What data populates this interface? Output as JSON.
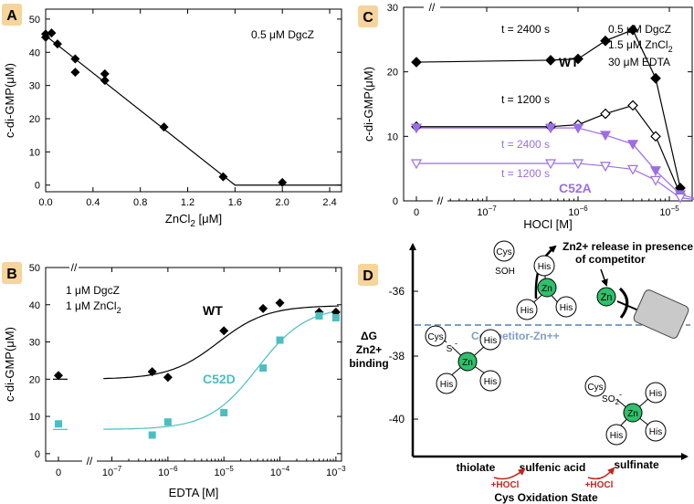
{
  "colors": {
    "wt": "#000000",
    "c52d": "#4bbfbf",
    "c52a": "#9b6ee6",
    "badge": "#f6d49a",
    "zn": "#2ec06a",
    "competitor": "#7f9fc8",
    "arrow_red": "#c0281e"
  },
  "chart_data": [
    {
      "panel": "A",
      "type": "scatter",
      "xlabel": "ZnCl2 [μM]",
      "ylabel": "c-di-GMP(μM)",
      "xlim": [
        0,
        2.5
      ],
      "ylim": [
        -2,
        53
      ],
      "xticks": [
        0.0,
        0.4,
        0.8,
        1.2,
        1.6,
        2.0,
        2.4
      ],
      "xtick_labels": [
        "0.0",
        "0.4",
        "0.8",
        "1.2",
        "1.6",
        "2.0",
        "2.4"
      ],
      "yticks": [
        0,
        10,
        20,
        30,
        40,
        50
      ],
      "ytick_labels": [
        "0",
        "10",
        "20",
        "30",
        "40",
        "50"
      ],
      "annotation": "0.5 μM DgcZ",
      "points": [
        {
          "x": 0.0,
          "y": 44.5
        },
        {
          "x": 0.0,
          "y": 45.5
        },
        {
          "x": 0.05,
          "y": 45.8
        },
        {
          "x": 0.1,
          "y": 42.5
        },
        {
          "x": 0.25,
          "y": 38
        },
        {
          "x": 0.25,
          "y": 34
        },
        {
          "x": 0.5,
          "y": 33.5
        },
        {
          "x": 0.5,
          "y": 31.5
        },
        {
          "x": 1.0,
          "y": 17.5
        },
        {
          "x": 1.5,
          "y": 2.5
        },
        {
          "x": 2.0,
          "y": 0.8
        }
      ],
      "fit_line": [
        {
          "x": 0.0,
          "y": 45
        },
        {
          "x": 1.6,
          "y": 0
        },
        {
          "x": 2.5,
          "y": 0
        }
      ]
    },
    {
      "panel": "B",
      "type": "scatter",
      "xlabel": "EDTA [M]",
      "ylabel": "c-di-GMP(μM)",
      "xlim": [
        -7.4,
        -2.9
      ],
      "ylim": [
        -2,
        50
      ],
      "xticks": [
        -7,
        -6,
        -5,
        -4,
        -3
      ],
      "xtick_labels": [
        "10−7",
        "10−6",
        "10−5",
        "10−4",
        "10−3"
      ],
      "zero_tick": "0",
      "yticks": [
        0,
        10,
        20,
        30,
        40,
        50
      ],
      "ytick_labels": [
        "0",
        "10",
        "20",
        "30",
        "40",
        "50"
      ],
      "annotation_lines": [
        "1 μM DgcZ",
        "1 μM ZnCl2"
      ],
      "series": [
        {
          "name": "WT",
          "marker": "diamond",
          "zero_value": 21,
          "points": [
            {
              "x": -6.28,
              "y": 22
            },
            {
              "x": -6.0,
              "y": 20.5
            },
            {
              "x": -5.0,
              "y": 33
            },
            {
              "x": -4.3,
              "y": 39
            },
            {
              "x": -4.0,
              "y": 40.5
            },
            {
              "x": -3.3,
              "y": 38
            },
            {
              "x": -3.0,
              "y": 38
            }
          ],
          "fit": {
            "low": 20,
            "high": 39.8,
            "log_ec50": -5.1,
            "hill": 1
          }
        },
        {
          "name": "C52D",
          "marker": "square",
          "zero_value": 8,
          "points": [
            {
              "x": -6.28,
              "y": 5
            },
            {
              "x": -6.0,
              "y": 8.5
            },
            {
              "x": -5.0,
              "y": 11
            },
            {
              "x": -4.3,
              "y": 23
            },
            {
              "x": -4.0,
              "y": 30.5
            },
            {
              "x": -3.3,
              "y": 37
            },
            {
              "x": -3.0,
              "y": 36.5
            }
          ],
          "fit": {
            "low": 6.5,
            "high": 39.5,
            "log_ec50": -4.4,
            "hill": 1
          }
        }
      ]
    },
    {
      "panel": "C",
      "type": "line",
      "xlabel": "HOCl  [M]",
      "ylabel": "c-di-GMP(μM)",
      "xlim": [
        -7.55,
        -4.75
      ],
      "ylim": [
        0,
        30
      ],
      "xticks": [
        -7,
        -6,
        -5
      ],
      "xtick_labels": [
        "10−7",
        "10−6",
        "10−5"
      ],
      "zero_tick": "0",
      "yticks": [
        0,
        10,
        20,
        30
      ],
      "ytick_labels": [
        "0",
        "10",
        "20",
        "30"
      ],
      "annotation_lines": [
        "0.5 μM DgcZ",
        "1.5 μM ZnCl2",
        "30 μM EDTA"
      ],
      "series": [
        {
          "name": "WT t = 2400 s",
          "label": "t = 2400 s",
          "marker": "diamond-filled",
          "zero_value": 21.5,
          "points": [
            {
              "x": -6.3,
              "y": 21.8
            },
            {
              "x": -6.0,
              "y": 22
            },
            {
              "x": -5.7,
              "y": 24.8
            },
            {
              "x": -5.4,
              "y": 26.5
            },
            {
              "x": -5.15,
              "y": 19
            },
            {
              "x": -4.88,
              "y": 2
            }
          ]
        },
        {
          "name": "WT t = 1200 s",
          "label": "t = 1200 s",
          "marker": "diamond-open",
          "zero_value": 11.5,
          "points": [
            {
              "x": -6.3,
              "y": 11.5
            },
            {
              "x": -6.0,
              "y": 11.8
            },
            {
              "x": -5.7,
              "y": 13.5
            },
            {
              "x": -5.4,
              "y": 14.8
            },
            {
              "x": -5.15,
              "y": 10
            },
            {
              "x": -4.88,
              "y": 1
            }
          ]
        },
        {
          "name": "C52A t = 2400 s",
          "label": "t = 2400 s",
          "marker": "triangle-filled",
          "zero_value": 11.3,
          "points": [
            {
              "x": -6.3,
              "y": 11.3
            },
            {
              "x": -6.0,
              "y": 11.3
            },
            {
              "x": -5.7,
              "y": 10.2
            },
            {
              "x": -5.4,
              "y": 8.8
            },
            {
              "x": -5.15,
              "y": 4.7
            },
            {
              "x": -4.88,
              "y": 1
            },
            {
              "x": -4.62,
              "y": 0
            }
          ]
        },
        {
          "name": "C52A t = 1200 s",
          "label": "t = 1200 s",
          "marker": "triangle-open",
          "zero_value": 5.8,
          "points": [
            {
              "x": -6.3,
              "y": 5.8
            },
            {
              "x": -6.0,
              "y": 5.8
            },
            {
              "x": -5.7,
              "y": 5.4
            },
            {
              "x": -5.4,
              "y": 4.9
            },
            {
              "x": -5.15,
              "y": 3.2
            },
            {
              "x": -4.88,
              "y": 0.5
            },
            {
              "x": -4.62,
              "y": 0
            }
          ]
        }
      ],
      "group_labels": [
        "WT",
        "C52A"
      ]
    },
    {
      "panel": "D",
      "type": "diagram",
      "ylabel_lines": [
        "ΔG",
        "Zn2+",
        "binding"
      ],
      "yticks": [
        -36,
        -38,
        -40
      ],
      "ytick_labels": [
        "-36",
        "-38",
        "-40"
      ],
      "xlabel": "Cys Oxidation State",
      "competitor_label": "Competitor-Zn++",
      "release_label_lines": [
        "Zn2+ release in presence",
        "of competitor"
      ],
      "x_states": [
        "thiolate",
        "sulfenic acid",
        "sulfinate"
      ],
      "reagent_label": "+HOCl",
      "zn_label": "Zn",
      "his_label": "His",
      "cys_label": "Cys",
      "soh_label": "SOH",
      "s_label": "S",
      "so2_label": "SO",
      "so2_sub": "2",
      "minus": "-"
    }
  ],
  "panel_letters": [
    "A",
    "B",
    "C",
    "D"
  ]
}
